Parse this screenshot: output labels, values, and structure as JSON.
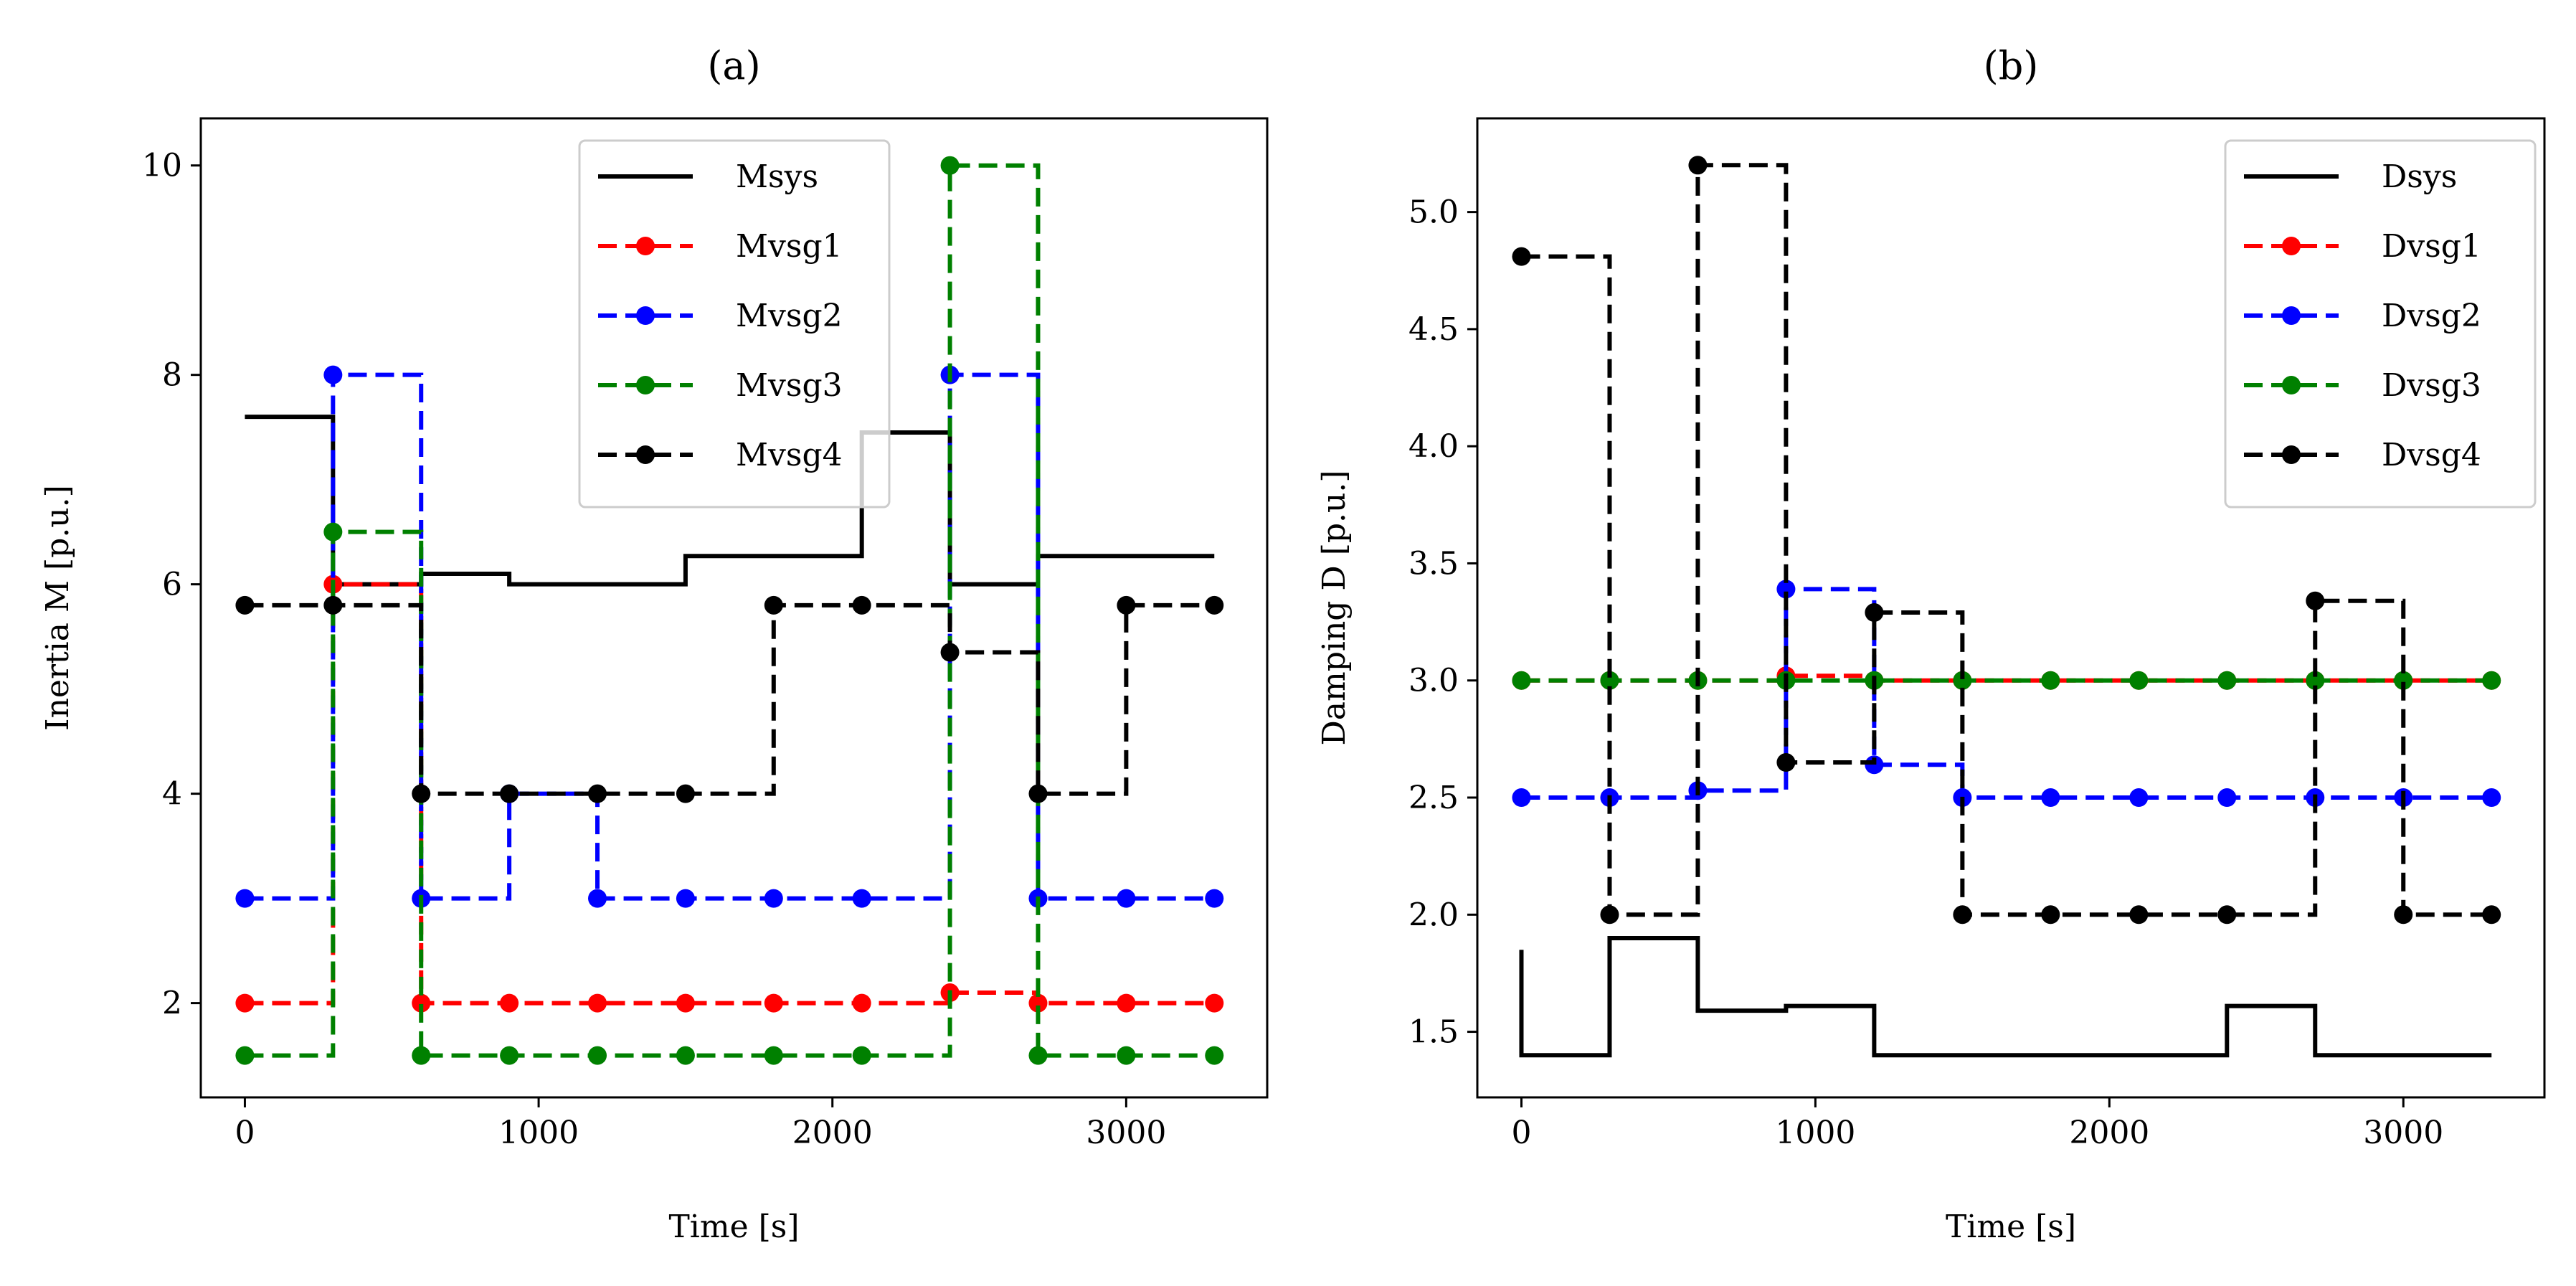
{
  "chart_data": [
    {
      "type": "line",
      "title": "(a)",
      "xlabel": "Time [s]",
      "ylabel": "Inertia M [p.u.]",
      "xlim": [
        -150,
        3480
      ],
      "ylim": [
        1.1,
        10.45
      ],
      "xticks": [
        0,
        1000,
        2000,
        3000
      ],
      "yticks": [
        2,
        4,
        6,
        8,
        10
      ],
      "grid": false,
      "legend_position": "top-center",
      "series": [
        {
          "name": "Msys",
          "color": "#000000",
          "style": "solid",
          "markers": false,
          "x": [
            0,
            300,
            300,
            600,
            600,
            900,
            900,
            1200,
            1200,
            1500,
            1500,
            1800,
            1800,
            2100,
            2100,
            2400,
            2400,
            2700,
            2700,
            3000,
            3000,
            3300
          ],
          "y": [
            7.6,
            7.6,
            6.0,
            6.0,
            6.1,
            6.1,
            6.0,
            6.0,
            6.0,
            6.0,
            6.27,
            6.27,
            6.27,
            6.27,
            7.45,
            7.45,
            6.0,
            6.0,
            6.27,
            6.27,
            6.27,
            6.27
          ]
        },
        {
          "name": "Mvsg1",
          "color": "#ff0000",
          "style": "dashed",
          "markers": true,
          "x": [
            0,
            300,
            600,
            900,
            1200,
            1500,
            1800,
            2100,
            2400,
            2700,
            3000,
            3300
          ],
          "y": [
            2.0,
            6.0,
            2.0,
            2.0,
            2.0,
            2.0,
            2.0,
            2.0,
            2.1,
            2.0,
            2.0,
            2.0
          ]
        },
        {
          "name": "Mvsg2",
          "color": "#0000ff",
          "style": "dashed",
          "markers": true,
          "x": [
            0,
            300,
            600,
            900,
            1200,
            1500,
            1800,
            2100,
            2400,
            2700,
            3000,
            3300
          ],
          "y": [
            3.0,
            8.0,
            3.0,
            4.0,
            3.0,
            3.0,
            3.0,
            3.0,
            8.0,
            3.0,
            3.0,
            3.0
          ]
        },
        {
          "name": "Mvsg3",
          "color": "#008000",
          "style": "dashed",
          "markers": true,
          "x": [
            0,
            300,
            600,
            900,
            1200,
            1500,
            1800,
            2100,
            2400,
            2700,
            3000,
            3300
          ],
          "y": [
            1.5,
            6.5,
            1.5,
            1.5,
            1.5,
            1.5,
            1.5,
            1.5,
            10.0,
            1.5,
            1.5,
            1.5
          ]
        },
        {
          "name": "Mvsg4",
          "color": "#000000",
          "style": "dashed",
          "markers": true,
          "x": [
            0,
            300,
            600,
            900,
            1200,
            1500,
            1800,
            2100,
            2400,
            2700,
            3000,
            3300
          ],
          "y": [
            5.8,
            5.8,
            4.0,
            4.0,
            4.0,
            4.0,
            5.8,
            5.8,
            5.35,
            4.0,
            5.8,
            5.8
          ]
        }
      ]
    },
    {
      "type": "line",
      "title": "(b)",
      "xlabel": "Time [s]",
      "ylabel": "Damping D [p.u.]",
      "xlim": [
        -150,
        3480
      ],
      "ylim": [
        1.22,
        5.4
      ],
      "xticks": [
        0,
        1000,
        2000,
        3000
      ],
      "yticks": [
        1.5,
        2.0,
        2.5,
        3.0,
        3.5,
        4.0,
        4.5,
        5.0
      ],
      "grid": false,
      "legend_position": "top-right",
      "series": [
        {
          "name": "Dsys",
          "color": "#000000",
          "style": "solid",
          "markers": false,
          "x": [
            0,
            0,
            300,
            300,
            600,
            600,
            900,
            900,
            1200,
            1200,
            1500,
            1500,
            1800,
            1800,
            2100,
            2100,
            2400,
            2400,
            2700,
            2700,
            3000,
            3000,
            3300
          ],
          "y": [
            1.85,
            1.4,
            1.4,
            1.9,
            1.9,
            1.59,
            1.59,
            1.61,
            1.61,
            1.4,
            1.4,
            1.4,
            1.4,
            1.4,
            1.4,
            1.4,
            1.4,
            1.61,
            1.61,
            1.4,
            1.4,
            1.4,
            1.4
          ]
        },
        {
          "name": "Dvsg1",
          "color": "#ff0000",
          "style": "dashed",
          "markers": true,
          "x": [
            0,
            300,
            600,
            900,
            1200,
            1500,
            1800,
            2100,
            2400,
            2700,
            3000,
            3300
          ],
          "y": [
            3.0,
            3.0,
            3.0,
            3.02,
            3.0,
            3.0,
            3.0,
            3.0,
            3.0,
            3.0,
            3.0,
            3.0
          ]
        },
        {
          "name": "Dvsg2",
          "color": "#0000ff",
          "style": "dashed",
          "markers": true,
          "x": [
            0,
            300,
            600,
            900,
            1200,
            1500,
            1800,
            2100,
            2400,
            2700,
            3000,
            3300
          ],
          "y": [
            2.5,
            2.5,
            2.53,
            3.39,
            2.64,
            2.5,
            2.5,
            2.5,
            2.5,
            2.5,
            2.5,
            2.5
          ]
        },
        {
          "name": "Dvsg3",
          "color": "#008000",
          "style": "dashed",
          "markers": true,
          "x": [
            0,
            300,
            600,
            900,
            1200,
            1500,
            1800,
            2100,
            2400,
            2700,
            3000,
            3300
          ],
          "y": [
            3.0,
            3.0,
            3.0,
            3.0,
            3.0,
            3.0,
            3.0,
            3.0,
            3.0,
            3.0,
            3.0,
            3.0
          ]
        },
        {
          "name": "Dvsg4",
          "color": "#000000",
          "style": "dashed",
          "markers": true,
          "x": [
            0,
            300,
            600,
            900,
            1200,
            1500,
            1800,
            2100,
            2400,
            2700,
            3000,
            3300
          ],
          "y": [
            4.81,
            2.0,
            5.2,
            2.65,
            3.29,
            2.0,
            2.0,
            2.0,
            2.0,
            3.34,
            2.0,
            2.0
          ]
        }
      ]
    }
  ]
}
